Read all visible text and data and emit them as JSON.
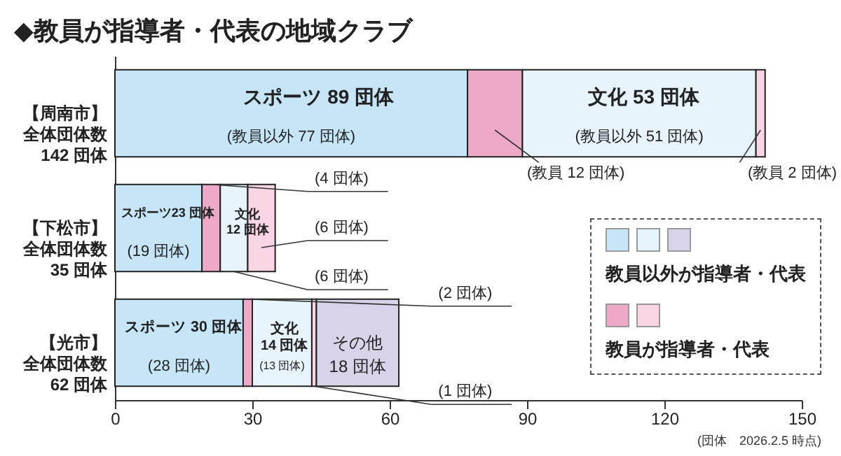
{
  "chart_data": {
    "type": "bar",
    "orientation": "horizontal",
    "stacked": true,
    "title": "◆教員が指導者・代表の地域クラブ",
    "categories": [
      "【周南市】全体団体数142 団体",
      "【下松市】全体団体数35 団体",
      "【光市】全体団体数62 団体"
    ],
    "series": [
      {
        "name": "教員以外が指導者・代表",
        "color": "#c6e6f8",
        "values": [
          77,
          19,
          28
        ],
        "value_labels": [
          "(教員以外 77 団体)",
          "(19 団体)",
          "(28 団体)"
        ]
      },
      {
        "name": "教員が指導者・代表",
        "color": "#eea9c9",
        "values": [
          12,
          4,
          2
        ],
        "value_labels": [
          "(教員 12 団体)",
          "(4 団体)",
          "(2 団体)"
        ]
      },
      {
        "color": "#e8f4fc",
        "values": [
          51,
          6,
          13
        ],
        "value_labels": [
          "(教員以外 51 団体)",
          "(6 団体)",
          "(13 団体)"
        ]
      },
      {
        "color": "#f9d5e5",
        "values": [
          2,
          6,
          1
        ],
        "value_labels": [
          "(教員 2 団体)",
          "(6 団体)",
          "(1 団体)"
        ]
      },
      {
        "color": "#d9d3ea",
        "values": [
          null,
          null,
          18
        ],
        "value_labels": [
          null,
          null,
          "その他\n18 団体"
        ]
      }
    ],
    "xlim": [
      0,
      150
    ],
    "xticks": [
      0,
      30,
      60,
      90,
      120,
      150
    ],
    "legend": "bottom right",
    "annotations": [
      "スポーツ 89 団体",
      "文化 53 団体",
      "スポーツ23 団体",
      "文化\n12 団体",
      "スポーツ 30 団体",
      "文化\n14 団体",
      "(団体　2026.2.5 時点)"
    ]
  }
}
